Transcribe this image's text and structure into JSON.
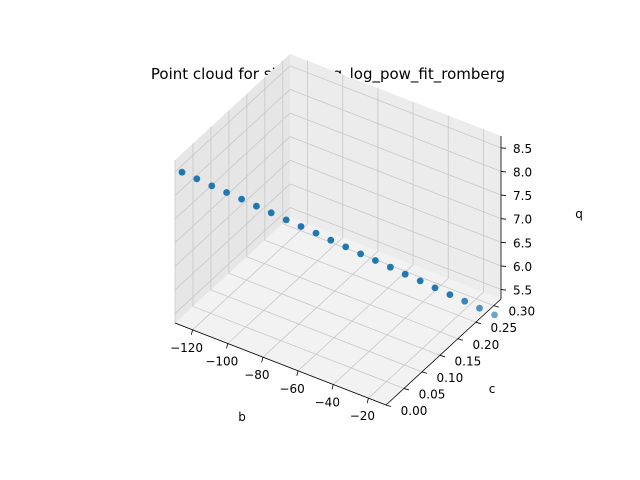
{
  "figure": {
    "title": "Point cloud for sin_hp_log_log_pow_fit_romberg"
  },
  "chart_data": {
    "type": "scatter",
    "projection": "3d",
    "title": "Point cloud for sin_hp_log_log_pow_fit_romberg",
    "xlabel": "b",
    "ylabel": "c",
    "zlabel": "q",
    "xlim": [
      -130,
      -10
    ],
    "ylim": [
      0,
      0.32
    ],
    "zlim": [
      5.3,
      8.75
    ],
    "grid": true,
    "legend": "none",
    "marker_color": "#1f77b4",
    "pane_color": "#f2f2f2",
    "x_ticks": [
      -120,
      -100,
      -80,
      -60,
      -40,
      -20
    ],
    "y_ticks": [
      0.0,
      0.05,
      0.1,
      0.15,
      0.2,
      0.25,
      0.3
    ],
    "z_ticks": [
      5.5,
      6.0,
      6.5,
      7.0,
      7.5,
      8.0,
      8.5
    ],
    "x_tick_labels": [
      "−120",
      "−100",
      "−80",
      "−60",
      "−40",
      "−20"
    ],
    "y_tick_labels": [
      "0.00",
      "0.05",
      "0.10",
      "0.15",
      "0.20",
      "0.25",
      "0.30"
    ],
    "z_tick_labels": [
      "5.5",
      "6.0",
      "6.5",
      "7.0",
      "7.5",
      "8.0",
      "8.5"
    ],
    "points": {
      "x": [
        -126.0,
        -120.5,
        -114.9,
        -109.4,
        -103.8,
        -98.3,
        -92.8,
        -87.2,
        -81.7,
        -76.1,
        -70.6,
        -65.0,
        -59.5,
        -54.0,
        -48.4,
        -42.9,
        -37.3,
        -31.8,
        -26.2,
        -20.7,
        -15.2,
        -9.6
      ],
      "y": [
        0.0,
        0.0143,
        0.0286,
        0.0429,
        0.0571,
        0.0714,
        0.0857,
        0.1,
        0.1143,
        0.1286,
        0.1429,
        0.1571,
        0.1714,
        0.1857,
        0.2,
        0.2143,
        0.2286,
        0.2429,
        0.2571,
        0.2714,
        0.2857,
        0.3
      ],
      "z": [
        8.55,
        8.39,
        8.22,
        8.06,
        7.9,
        7.73,
        7.57,
        7.4,
        7.24,
        7.08,
        6.91,
        6.75,
        6.58,
        6.42,
        6.26,
        6.09,
        5.93,
        5.76,
        5.6,
        5.44,
        5.27,
        5.11
      ]
    }
  }
}
